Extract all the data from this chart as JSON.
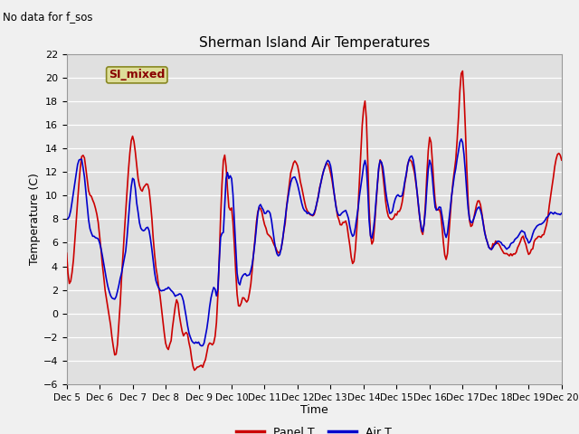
{
  "title": "Sherman Island Air Temperatures",
  "no_data_text": "No data for f_sos",
  "legend_label_text": "SI_mixed",
  "xlabel": "Time",
  "ylabel": "Temperature (C)",
  "ylim": [
    -6,
    22
  ],
  "yticks": [
    -6,
    -4,
    -2,
    0,
    2,
    4,
    6,
    8,
    10,
    12,
    14,
    16,
    18,
    20,
    22
  ],
  "xtick_labels": [
    "Dec 5",
    "Dec 6",
    "Dec 7",
    "Dec 8",
    "Dec 9",
    "Dec 10",
    "Dec 11",
    "Dec 12",
    "Dec 13",
    "Dec 14",
    "Dec 15",
    "Dec 16",
    "Dec 17",
    "Dec 18",
    "Dec 19",
    "Dec 20"
  ],
  "xtick_positions": [
    0,
    24,
    48,
    72,
    96,
    120,
    144,
    168,
    192,
    216,
    240,
    264,
    288,
    312,
    336,
    360
  ],
  "panel_T_color": "#cc0000",
  "air_T_color": "#0000cc",
  "background_color": "#e8e8e8",
  "axes_facecolor": "#e0e0e0",
  "fig_facecolor": "#f0f0f0",
  "legend_box_facecolor": "#dddd99",
  "legend_box_edgecolor": "#888822",
  "legend_text_color": "#880000",
  "panel_T_label": "Panel T",
  "air_T_label": "Air T",
  "linewidth": 1.2,
  "n_points": 361,
  "panel_T_keypoints": [
    [
      0,
      5.0
    ],
    [
      8,
      9.5
    ],
    [
      12,
      13.5
    ],
    [
      16,
      10.5
    ],
    [
      20,
      9.5
    ],
    [
      24,
      6.5
    ],
    [
      28,
      2.0
    ],
    [
      32,
      -1.0
    ],
    [
      36,
      -3.5
    ],
    [
      40,
      3.0
    ],
    [
      44,
      10.5
    ],
    [
      48,
      15.0
    ],
    [
      52,
      11.5
    ],
    [
      56,
      10.5
    ],
    [
      60,
      10.5
    ],
    [
      64,
      5.0
    ],
    [
      68,
      1.5
    ],
    [
      72,
      -2.5
    ],
    [
      76,
      -2.2
    ],
    [
      80,
      1.0
    ],
    [
      84,
      -1.5
    ],
    [
      88,
      -1.8
    ],
    [
      92,
      -4.5
    ],
    [
      96,
      -4.5
    ],
    [
      100,
      -4.2
    ],
    [
      104,
      -2.5
    ],
    [
      108,
      -2.0
    ],
    [
      110,
      1.5
    ],
    [
      112,
      8.0
    ],
    [
      114,
      13.0
    ],
    [
      116,
      12.5
    ],
    [
      118,
      9.0
    ],
    [
      120,
      9.0
    ],
    [
      124,
      1.5
    ],
    [
      128,
      1.2
    ],
    [
      132,
      1.2
    ],
    [
      136,
      5.0
    ],
    [
      140,
      9.0
    ],
    [
      144,
      7.5
    ],
    [
      148,
      6.5
    ],
    [
      152,
      5.5
    ],
    [
      156,
      5.5
    ],
    [
      160,
      9.0
    ],
    [
      164,
      12.5
    ],
    [
      168,
      12.5
    ],
    [
      172,
      10.0
    ],
    [
      176,
      8.5
    ],
    [
      180,
      8.5
    ],
    [
      184,
      10.5
    ],
    [
      188,
      12.5
    ],
    [
      192,
      12.0
    ],
    [
      196,
      9.0
    ],
    [
      200,
      7.5
    ],
    [
      204,
      7.5
    ],
    [
      208,
      4.3
    ],
    [
      212,
      9.0
    ],
    [
      216,
      17.5
    ],
    [
      218,
      16.5
    ],
    [
      220,
      9.0
    ],
    [
      224,
      7.5
    ],
    [
      228,
      13.0
    ],
    [
      232,
      9.5
    ],
    [
      236,
      8.0
    ],
    [
      240,
      8.5
    ],
    [
      244,
      9.5
    ],
    [
      248,
      12.5
    ],
    [
      252,
      12.5
    ],
    [
      256,
      9.0
    ],
    [
      260,
      7.5
    ],
    [
      264,
      15.0
    ],
    [
      268,
      9.5
    ],
    [
      272,
      8.5
    ],
    [
      276,
      4.5
    ],
    [
      280,
      10.0
    ],
    [
      284,
      14.5
    ],
    [
      288,
      20.5
    ],
    [
      292,
      9.5
    ],
    [
      296,
      8.0
    ],
    [
      300,
      9.5
    ],
    [
      304,
      7.0
    ],
    [
      308,
      5.5
    ],
    [
      312,
      6.0
    ],
    [
      316,
      5.5
    ],
    [
      320,
      5.0
    ],
    [
      324,
      5.0
    ],
    [
      328,
      5.5
    ],
    [
      332,
      6.5
    ],
    [
      336,
      5.0
    ],
    [
      340,
      6.0
    ],
    [
      344,
      6.5
    ],
    [
      348,
      7.0
    ],
    [
      352,
      10.0
    ],
    [
      356,
      13.0
    ],
    [
      360,
      13.0
    ]
  ],
  "air_T_keypoints": [
    [
      0,
      8.0
    ],
    [
      8,
      12.5
    ],
    [
      12,
      12.5
    ],
    [
      16,
      8.0
    ],
    [
      20,
      6.5
    ],
    [
      24,
      6.0
    ],
    [
      28,
      3.5
    ],
    [
      32,
      1.5
    ],
    [
      36,
      1.5
    ],
    [
      40,
      3.5
    ],
    [
      44,
      6.5
    ],
    [
      48,
      11.5
    ],
    [
      52,
      8.5
    ],
    [
      56,
      7.0
    ],
    [
      60,
      7.0
    ],
    [
      64,
      3.5
    ],
    [
      68,
      2.0
    ],
    [
      72,
      2.0
    ],
    [
      76,
      2.0
    ],
    [
      80,
      1.5
    ],
    [
      84,
      1.5
    ],
    [
      88,
      -1.0
    ],
    [
      92,
      -2.5
    ],
    [
      96,
      -2.5
    ],
    [
      100,
      -2.5
    ],
    [
      104,
      0.5
    ],
    [
      108,
      2.0
    ],
    [
      110,
      2.0
    ],
    [
      112,
      6.5
    ],
    [
      114,
      7.0
    ],
    [
      116,
      11.5
    ],
    [
      118,
      11.5
    ],
    [
      120,
      11.5
    ],
    [
      124,
      3.5
    ],
    [
      128,
      3.2
    ],
    [
      132,
      3.2
    ],
    [
      136,
      5.0
    ],
    [
      140,
      9.0
    ],
    [
      144,
      8.5
    ],
    [
      148,
      8.5
    ],
    [
      152,
      5.5
    ],
    [
      156,
      5.5
    ],
    [
      160,
      9.0
    ],
    [
      164,
      11.5
    ],
    [
      168,
      11.0
    ],
    [
      172,
      9.0
    ],
    [
      176,
      8.5
    ],
    [
      180,
      8.5
    ],
    [
      184,
      10.5
    ],
    [
      188,
      12.5
    ],
    [
      192,
      12.5
    ],
    [
      196,
      9.0
    ],
    [
      200,
      8.5
    ],
    [
      204,
      8.5
    ],
    [
      208,
      6.5
    ],
    [
      212,
      9.0
    ],
    [
      216,
      12.5
    ],
    [
      218,
      12.5
    ],
    [
      220,
      8.0
    ],
    [
      224,
      8.0
    ],
    [
      228,
      13.0
    ],
    [
      232,
      10.5
    ],
    [
      236,
      8.5
    ],
    [
      240,
      10.0
    ],
    [
      244,
      10.0
    ],
    [
      248,
      12.5
    ],
    [
      252,
      13.0
    ],
    [
      256,
      9.0
    ],
    [
      260,
      7.5
    ],
    [
      264,
      13.0
    ],
    [
      268,
      9.0
    ],
    [
      272,
      9.0
    ],
    [
      276,
      6.5
    ],
    [
      280,
      10.0
    ],
    [
      284,
      13.0
    ],
    [
      288,
      14.5
    ],
    [
      292,
      9.0
    ],
    [
      296,
      8.0
    ],
    [
      300,
      9.0
    ],
    [
      304,
      7.0
    ],
    [
      308,
      5.5
    ],
    [
      312,
      6.0
    ],
    [
      316,
      6.0
    ],
    [
      320,
      5.5
    ],
    [
      324,
      6.0
    ],
    [
      328,
      6.5
    ],
    [
      332,
      7.0
    ],
    [
      336,
      6.0
    ],
    [
      340,
      7.0
    ],
    [
      344,
      7.5
    ],
    [
      348,
      8.0
    ],
    [
      352,
      8.5
    ],
    [
      356,
      8.5
    ],
    [
      360,
      8.5
    ]
  ]
}
